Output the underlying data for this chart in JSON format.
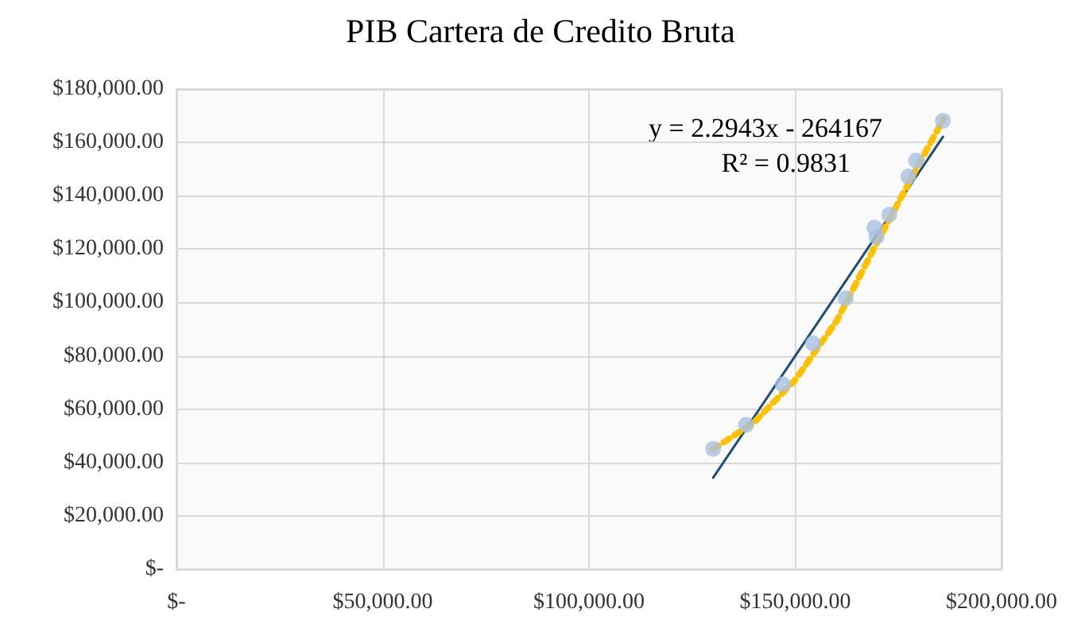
{
  "chart_data": {
    "type": "scatter",
    "title": "PIB Cartera de Credito Bruta",
    "series": [
      {
        "color": "#a9c1e0",
        "marker": "circle",
        "x": [
          130100,
          138100,
          147000,
          154300,
          162200,
          169200,
          169700,
          172800,
          177400,
          179300,
          185800
        ],
        "values": [
          45100,
          54100,
          69300,
          84600,
          101500,
          128000,
          124600,
          132900,
          147200,
          153200,
          168100
        ]
      },
      {
        "type": "line",
        "color": "#1f4e79",
        "line_style": "solid",
        "marker": "none",
        "x": [
          130100,
          185800
        ],
        "values": [
          34300,
          162100
        ]
      },
      {
        "type": "line",
        "color": "#ffc000",
        "line_style": "dotted",
        "marker": "none",
        "x": [
          130100,
          140000,
          150000,
          160000,
          170000,
          180000,
          186000
        ],
        "values": [
          45000,
          55000,
          71000,
          93000,
          123000,
          152000,
          169000
        ]
      }
    ],
    "xlim": [
      0,
      200000
    ],
    "xticks": [
      {
        "value": 0,
        "label": "$-"
      },
      {
        "value": 50000,
        "label": "$50,000.00"
      },
      {
        "value": 100000,
        "label": "$100,000.00"
      },
      {
        "value": 150000,
        "label": "$150,000.00"
      },
      {
        "value": 200000,
        "label": "$200,000.00"
      }
    ],
    "ylim": [
      0,
      180000
    ],
    "yticks": [
      {
        "value": 0,
        "label": "$-"
      },
      {
        "value": 20000,
        "label": "$20,000.00"
      },
      {
        "value": 40000,
        "label": "$40,000.00"
      },
      {
        "value": 60000,
        "label": "$60,000.00"
      },
      {
        "value": 80000,
        "label": "$80,000.00"
      },
      {
        "value": 100000,
        "label": "$100,000.00"
      },
      {
        "value": 120000,
        "label": "$120,000.00"
      },
      {
        "value": 140000,
        "label": "$140,000.00"
      },
      {
        "value": 160000,
        "label": "$160,000.00"
      },
      {
        "value": 180000,
        "label": "$180,000.00"
      }
    ],
    "grid": true,
    "annotations": [
      "y = 2.2943x - 264167",
      "R² = 0.9831"
    ]
  }
}
